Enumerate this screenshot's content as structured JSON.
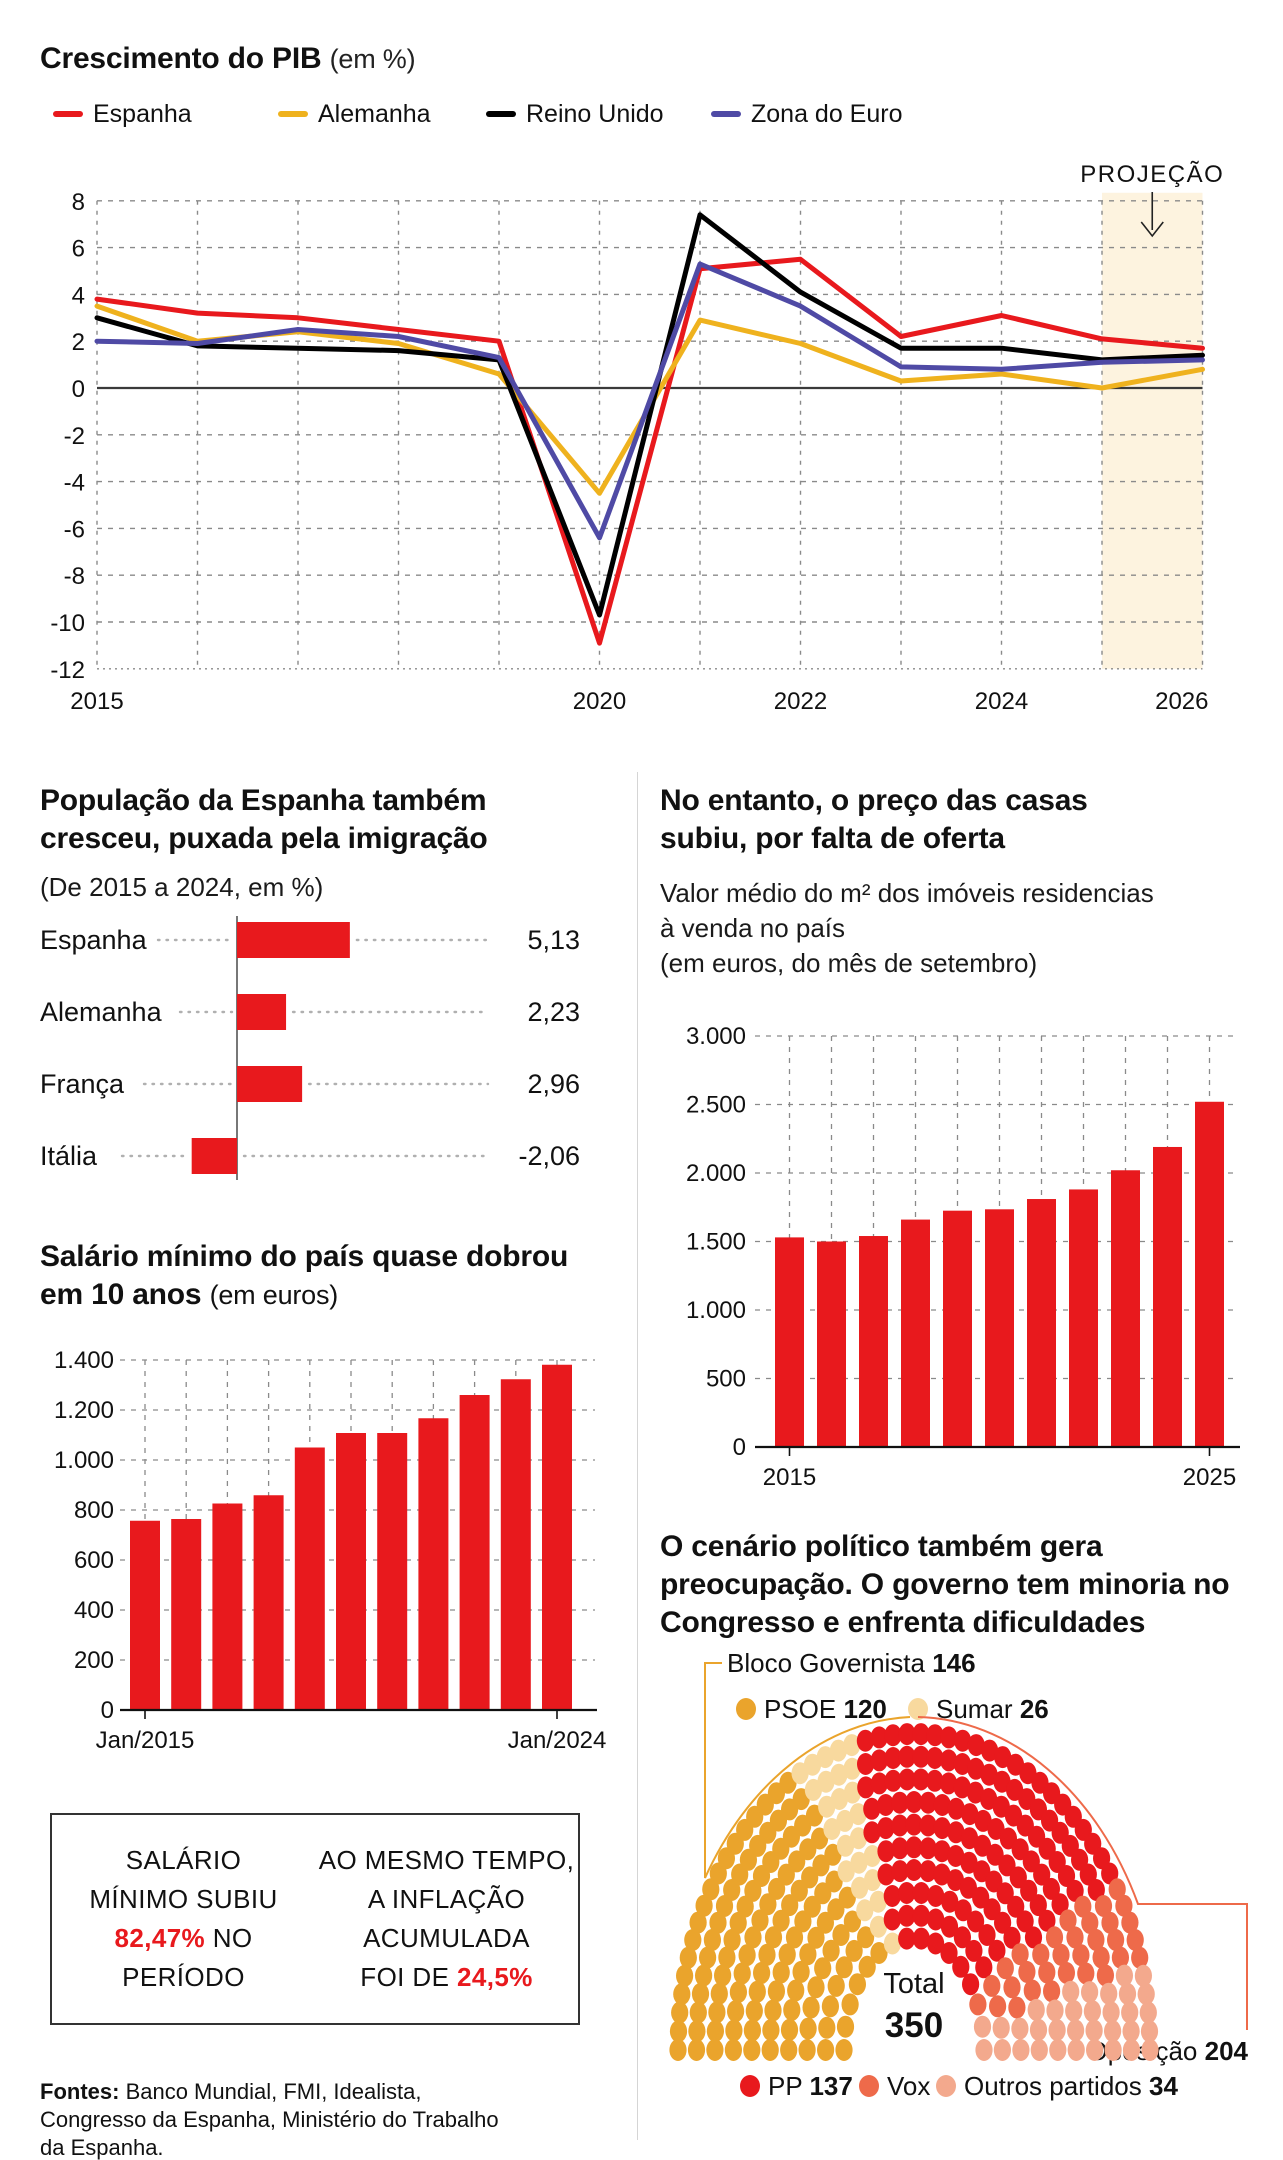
{
  "accent_red": "#e8191d",
  "chart_data": [
    {
      "id": "gdp-growth",
      "type": "line",
      "title": "Crescimento do PIB",
      "subtitle": "(em %)",
      "x": [
        2015,
        2016,
        2017,
        2018,
        2019,
        2020,
        2021,
        2022,
        2023,
        2024,
        2025,
        2026
      ],
      "x_tick_labels": [
        {
          "label": "2015",
          "year": 2015
        },
        {
          "label": "2020",
          "year": 2020
        },
        {
          "label": "2022",
          "year": 2022
        },
        {
          "label": "2024",
          "year": 2024
        },
        {
          "label": "2026",
          "year": 2026
        }
      ],
      "ylim": [
        -12,
        8
      ],
      "y_ticks": [
        "8",
        "6",
        "4",
        "2",
        "0",
        "-2",
        "-4",
        "-6",
        "-8",
        "-10",
        "-12"
      ],
      "grid": true,
      "legend_position": "top",
      "projection": {
        "label": "PROJEÇÃO",
        "from_year": 2025,
        "to_year": 2026,
        "fill": "#fdf3df"
      },
      "series": [
        {
          "name": "Espanha",
          "color": "#e8191d",
          "values": [
            3.8,
            3.2,
            3.0,
            2.5,
            2.0,
            -10.9,
            5.1,
            5.5,
            2.2,
            3.1,
            2.1,
            1.7
          ]
        },
        {
          "name": "Alemanha",
          "color": "#efb21e",
          "values": [
            3.5,
            2.0,
            2.4,
            1.9,
            0.6,
            -4.5,
            2.9,
            1.9,
            0.3,
            0.6,
            0.0,
            0.8
          ]
        },
        {
          "name": "Reino Unido",
          "color": "#000000",
          "values": [
            3.0,
            1.8,
            1.7,
            1.6,
            1.2,
            -9.7,
            7.4,
            4.1,
            1.7,
            1.7,
            1.2,
            1.4
          ]
        },
        {
          "name": "Zona do Euro",
          "color": "#4f4aa5",
          "values": [
            2.0,
            1.9,
            2.5,
            2.2,
            1.3,
            -6.4,
            5.3,
            3.5,
            0.9,
            0.8,
            1.1,
            1.2
          ]
        }
      ]
    },
    {
      "id": "population-growth",
      "type": "bar-horizontal",
      "title": "População da Espanha também cresceu, puxada pela imigração",
      "subtitle": "(De 2015 a 2024, em %)",
      "categories": [
        "Espanha",
        "Alemanha",
        "França",
        "Itália"
      ],
      "values": [
        5.13,
        2.23,
        2.96,
        -2.06
      ],
      "value_labels": [
        "5,13",
        "2,23",
        "2,96",
        "-2,06"
      ],
      "bar_color": "#e8191d"
    },
    {
      "id": "housing-price",
      "type": "bar",
      "title": "No entanto, o preço das casas subiu, por falta de oferta",
      "subtitle": "Valor médio do m² dos imóveis residencias\nà venda no país\n(em euros, do mês de setembro)",
      "categories": [
        2015,
        2016,
        2017,
        2018,
        2019,
        2020,
        2021,
        2022,
        2023,
        2024,
        2025
      ],
      "values": [
        1530,
        1500,
        1540,
        1660,
        1725,
        1735,
        1810,
        1880,
        2020,
        2190,
        2520
      ],
      "ylim": [
        0,
        3000
      ],
      "y_ticks": [
        {
          "label": "3.000",
          "value": 3000
        },
        {
          "label": "2.500",
          "value": 2500
        },
        {
          "label": "2.000",
          "value": 2000
        },
        {
          "label": "1.500",
          "value": 1500
        },
        {
          "label": "1.000",
          "value": 1000
        },
        {
          "label": "500",
          "value": 500
        },
        {
          "label": "0",
          "value": 0
        }
      ],
      "x_tick_labels": [
        {
          "label": "2015",
          "index": 0
        },
        {
          "label": "2025",
          "index": 10
        }
      ],
      "bar_color": "#e8191d"
    },
    {
      "id": "minimum-wage",
      "type": "bar",
      "title": "Salário mínimo do país quase dobrou em 10 anos",
      "subtitle": "(em euros)",
      "values": [
        757,
        764,
        826,
        859,
        1050,
        1108,
        1108,
        1167,
        1260,
        1323,
        1381
      ],
      "ylim": [
        0,
        1400
      ],
      "y_ticks": [
        {
          "label": "1.400",
          "value": 1400
        },
        {
          "label": "1.200",
          "value": 1200
        },
        {
          "label": "1.000",
          "value": 1000
        },
        {
          "label": "800",
          "value": 800
        },
        {
          "label": "600",
          "value": 600
        },
        {
          "label": "400",
          "value": 400
        },
        {
          "label": "200",
          "value": 200
        },
        {
          "label": "0",
          "value": 0
        }
      ],
      "x_tick_labels": [
        {
          "label": "Jan/2015",
          "index": 0
        },
        {
          "label": "Jan/2024",
          "index": 10
        }
      ],
      "bar_color": "#e8191d"
    },
    {
      "id": "congress-seats",
      "type": "parliament",
      "title": "O cenário político também gera preocupação. O governo tem minoria no Congresso e enfrenta dificuldades",
      "total_label": "Total",
      "total": "350",
      "bloc_label": "Bloco Governista ",
      "bloc_value": "146",
      "psoe_label": "PSOE ",
      "psoe_value": "120",
      "sumar_label": "Sumar ",
      "sumar_value": "26",
      "opposition_label": "Oposição ",
      "opposition_value": "204",
      "pp_label": "PP ",
      "pp_value": "137",
      "vox_label": "Vox",
      "outros_label": "Outros partidos ",
      "outros_value": "34",
      "groups": [
        {
          "name": "PSOE",
          "seats": 120,
          "color": "#eaa42c"
        },
        {
          "name": "Sumar",
          "seats": 26,
          "color": "#f8d99e"
        },
        {
          "name": "PP",
          "seats": 137,
          "color": "#e8191d"
        },
        {
          "name": "Vox",
          "seats": 33,
          "color": "#ee6a4a"
        },
        {
          "name": "Outros partidos",
          "seats": 34,
          "color": "#f3a98d"
        }
      ]
    }
  ],
  "statbox": {
    "left_pre": "SALÁRIO\nMÍNIMO SUBIU\n",
    "left_highlight": "82,47%",
    "left_post": " NO\nPERÍODO",
    "right_pre": "AO MESMO TEMPO,\nA INFLAÇÃO\nACUMULADA\nFOI DE ",
    "right_highlight": "24,5%"
  },
  "fontes": {
    "label": "Fontes:",
    "text": " Banco Mundial, FMI, Idealista, Congresso da Espanha, Ministério do Trabalho da Espanha."
  }
}
